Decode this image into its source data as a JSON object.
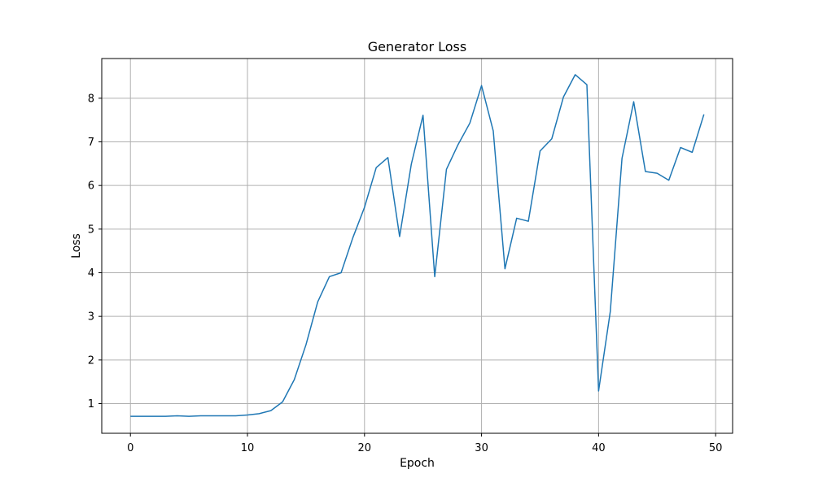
{
  "chart_data": {
    "type": "line",
    "title": "Generator Loss",
    "xlabel": "Epoch",
    "ylabel": "Loss",
    "xlim": [
      -2.45,
      51.45
    ],
    "ylim": [
      0.32,
      8.91
    ],
    "xticks": [
      0,
      10,
      20,
      30,
      40,
      50
    ],
    "yticks": [
      1,
      2,
      3,
      4,
      5,
      6,
      7,
      8
    ],
    "grid": true,
    "legend": false,
    "series": [
      {
        "color": "#1f77b4",
        "x": [
          0,
          1,
          2,
          3,
          4,
          5,
          6,
          7,
          8,
          9,
          10,
          11,
          12,
          13,
          14,
          15,
          16,
          17,
          18,
          19,
          20,
          21,
          22,
          23,
          24,
          25,
          26,
          27,
          28,
          29,
          30,
          31,
          32,
          33,
          34,
          35,
          36,
          37,
          38,
          39,
          40,
          41,
          42,
          43,
          44,
          45,
          46,
          47,
          48,
          49
        ],
        "y": [
          0.71,
          0.71,
          0.71,
          0.71,
          0.72,
          0.71,
          0.72,
          0.72,
          0.72,
          0.72,
          0.74,
          0.77,
          0.84,
          1.04,
          1.55,
          2.35,
          3.33,
          3.91,
          4.0,
          4.8,
          5.5,
          6.41,
          6.64,
          4.83,
          6.49,
          7.61,
          3.91,
          6.37,
          6.94,
          7.43,
          8.29,
          7.25,
          4.09,
          5.25,
          5.18,
          6.79,
          7.07,
          8.03,
          8.54,
          8.31,
          1.29,
          3.11,
          6.62,
          7.92,
          6.32,
          6.28,
          6.12,
          6.87,
          6.76,
          7.63
        ]
      }
    ]
  }
}
